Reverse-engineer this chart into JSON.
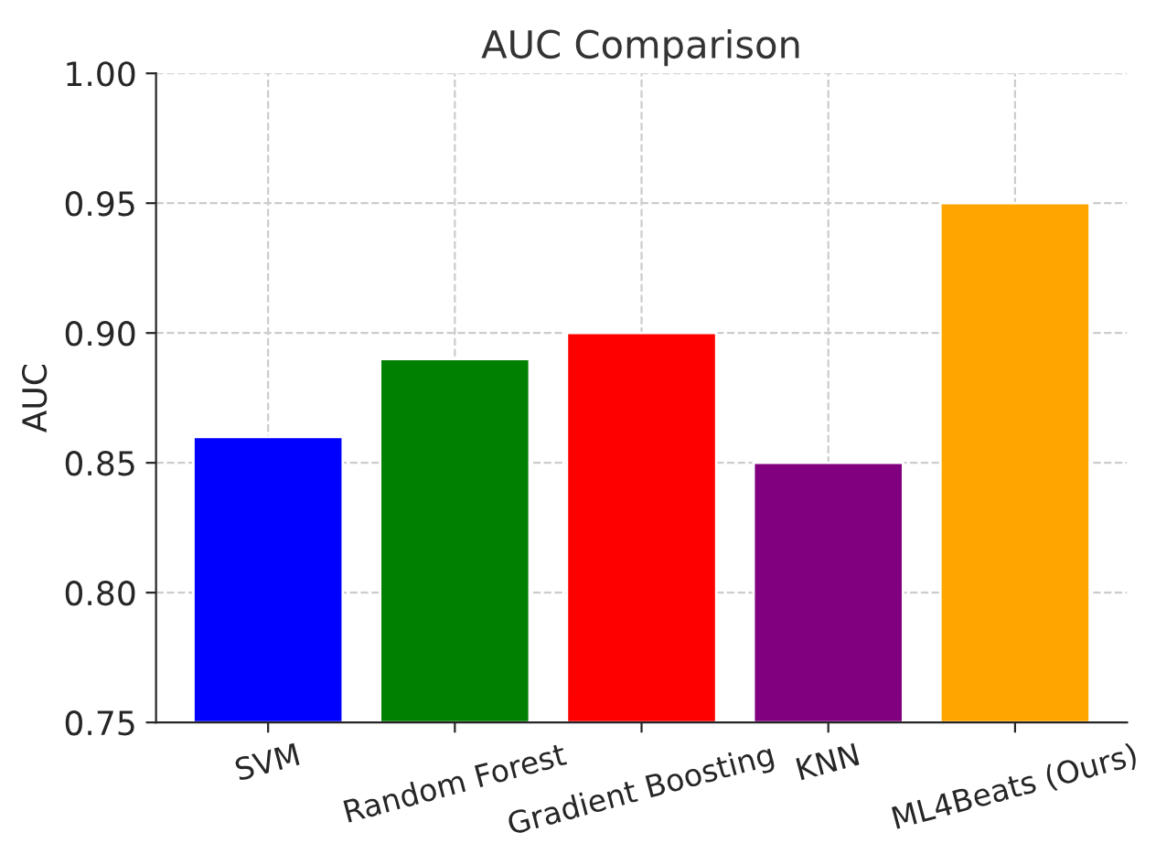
{
  "chart_data": {
    "type": "bar",
    "title": "AUC Comparison",
    "ylabel": "AUC",
    "categories": [
      "SVM",
      "Random Forest",
      "Gradient Boosting",
      "KNN",
      "ML4Beats (Ours)"
    ],
    "values": [
      0.86,
      0.89,
      0.9,
      0.85,
      0.95
    ],
    "colors": [
      "#0000ff",
      "#008000",
      "#ff0000",
      "#800080",
      "#ffa500"
    ],
    "ylim": [
      0.75,
      1.0
    ],
    "yticks": [
      {
        "value": 0.75,
        "label": "0.75"
      },
      {
        "value": 0.8,
        "label": "0.80"
      },
      {
        "value": 0.85,
        "label": "0.85"
      },
      {
        "value": 0.9,
        "label": "0.90"
      },
      {
        "value": 0.95,
        "label": "0.95"
      },
      {
        "value": 1.0,
        "label": "1.00"
      }
    ],
    "grid": true
  }
}
